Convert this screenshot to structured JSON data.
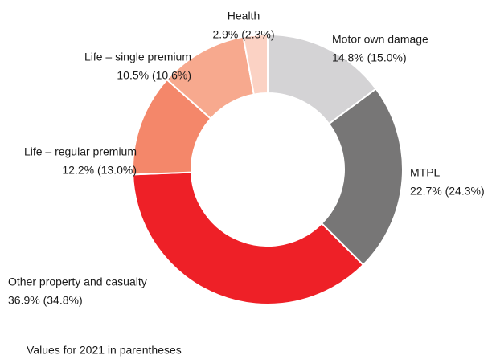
{
  "chart_data": {
    "type": "donut",
    "categories": [
      "Motor own damage",
      "MTPL",
      "Other property and casualty",
      "Life – regular premium",
      "Life – single premium",
      "Health"
    ],
    "values": [
      14.8,
      22.7,
      36.9,
      12.2,
      10.5,
      2.9
    ],
    "value_labels": [
      "14.8% (15.0%)",
      "22.7% (24.3%)",
      "36.9% (34.8%)",
      "12.2% (13.0%)",
      "10.5% (10.6%)",
      "2.9% (2.3%)"
    ],
    "colors": [
      "#d4d3d5",
      "#777676",
      "#ee2027",
      "#f4876a",
      "#f7a98e",
      "#fbd2c4"
    ],
    "note": "Values for 2021 in parentheses"
  }
}
